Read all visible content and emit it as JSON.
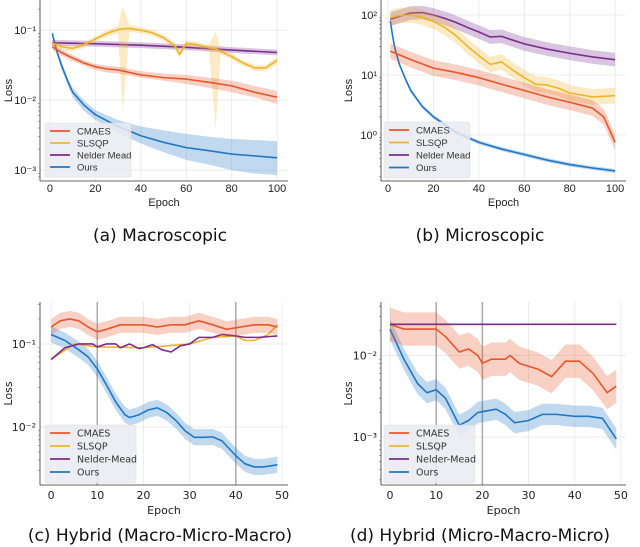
{
  "colors": {
    "CMAES": "#e8562a",
    "SLSQP": "#f0b429",
    "Nelder Mead": "#7b2d8e",
    "Nelder-Mead": "#7b2d8e",
    "Ours": "#1f77c4",
    "vline": "#aaaaaa",
    "legend_bg": "#eaeaf2"
  },
  "chart_data": [
    {
      "type": "line",
      "caption": "(a) Macroscopic",
      "xlabel": "Epoch",
      "ylabel": "Loss",
      "yscale": "log",
      "xlim": [
        -4.4,
        104.8
      ],
      "ylim": [
        0.0007,
        0.27
      ],
      "grid": true,
      "legend": "bottom-left",
      "xticks": [
        0,
        20,
        40,
        60,
        80,
        100
      ],
      "xtick_labels": [
        "0",
        "20",
        "40",
        "60",
        "80",
        "100"
      ],
      "yticks": [
        0.1,
        0.01,
        0.001
      ],
      "ytick_labels": [
        "10⁻¹",
        "10⁻²",
        "10⁻³"
      ],
      "vlines": [],
      "series": [
        {
          "name": "Ours",
          "x": [
            1,
            3,
            5,
            8,
            10,
            15,
            20,
            30,
            40,
            50,
            60,
            70,
            80,
            90,
            100
          ],
          "y": [
            0.09,
            0.05,
            0.032,
            0.018,
            0.013,
            0.0085,
            0.0062,
            0.0042,
            0.0031,
            0.0025,
            0.0021,
            0.0019,
            0.0017,
            0.0016,
            0.0015
          ],
          "lower": [
            0.08,
            0.045,
            0.028,
            0.016,
            0.011,
            0.007,
            0.0052,
            0.0034,
            0.0024,
            0.0018,
            0.0014,
            0.0012,
            0.001,
            0.0009,
            0.00085
          ],
          "upper": [
            0.1,
            0.055,
            0.036,
            0.02,
            0.015,
            0.0098,
            0.0072,
            0.0052,
            0.0042,
            0.0037,
            0.0033,
            0.003,
            0.0028,
            0.0027,
            0.0026
          ]
        },
        {
          "name": "Nelder Mead",
          "x": [
            1,
            20,
            40,
            60,
            80,
            100
          ],
          "y": [
            0.066,
            0.064,
            0.061,
            0.057,
            0.052,
            0.048
          ],
          "band_ratio": 1.1
        },
        {
          "name": "SLSQP",
          "x": [
            1,
            5,
            10,
            15,
            20,
            25,
            30,
            32,
            35,
            40,
            45,
            50,
            55,
            57,
            60,
            65,
            70,
            73,
            75,
            80,
            85,
            90,
            95,
            100
          ],
          "y": [
            0.065,
            0.058,
            0.055,
            0.062,
            0.075,
            0.09,
            0.102,
            0.105,
            0.106,
            0.1,
            0.092,
            0.078,
            0.06,
            0.045,
            0.065,
            0.062,
            0.056,
            0.054,
            0.05,
            0.042,
            0.034,
            0.029,
            0.029,
            0.037
          ],
          "lower": [
            0.06,
            0.052,
            0.05,
            0.056,
            0.068,
            0.082,
            0.09,
            0.007,
            0.095,
            0.09,
            0.083,
            0.07,
            0.054,
            0.04,
            0.058,
            0.056,
            0.05,
            0.004,
            0.045,
            0.038,
            0.031,
            0.026,
            0.026,
            0.033
          ],
          "upper": [
            0.07,
            0.064,
            0.06,
            0.068,
            0.082,
            0.099,
            0.115,
            0.22,
            0.118,
            0.11,
            0.101,
            0.086,
            0.066,
            0.05,
            0.072,
            0.068,
            0.062,
            0.095,
            0.055,
            0.046,
            0.037,
            0.032,
            0.032,
            0.041
          ]
        },
        {
          "name": "CMAES",
          "x": [
            1,
            5,
            10,
            15,
            20,
            25,
            30,
            40,
            50,
            60,
            70,
            80,
            90,
            100
          ],
          "y": [
            0.058,
            0.048,
            0.04,
            0.034,
            0.03,
            0.028,
            0.027,
            0.023,
            0.021,
            0.02,
            0.018,
            0.016,
            0.013,
            0.011
          ],
          "lower": [
            0.052,
            0.043,
            0.036,
            0.031,
            0.027,
            0.025,
            0.024,
            0.021,
            0.019,
            0.017,
            0.015,
            0.013,
            0.011,
            0.0088
          ],
          "upper": [
            0.064,
            0.053,
            0.044,
            0.037,
            0.033,
            0.031,
            0.03,
            0.026,
            0.024,
            0.023,
            0.021,
            0.019,
            0.016,
            0.0135
          ]
        }
      ],
      "legend_entries": [
        "CMAES",
        "SLSQP",
        "Nelder Mead",
        "Ours"
      ]
    },
    {
      "type": "line",
      "caption": "(b) Microscopic",
      "xlabel": "Epoch",
      "ylabel": "Loss",
      "yscale": "log",
      "xlim": [
        -3.1,
        104.8
      ],
      "ylim": [
        0.17,
        178
      ],
      "grid": true,
      "legend": "bottom-left",
      "xticks": [
        0,
        20,
        40,
        60,
        80,
        100
      ],
      "xtick_labels": [
        "0",
        "20",
        "40",
        "60",
        "80",
        "100"
      ],
      "yticks": [
        100,
        10,
        1
      ],
      "ytick_labels": [
        "10²",
        "10¹",
        "10⁰"
      ],
      "vlines": [],
      "series": [
        {
          "name": "Ours",
          "x": [
            1,
            2,
            3,
            5,
            8,
            10,
            15,
            20,
            30,
            40,
            50,
            60,
            70,
            80,
            90,
            100
          ],
          "y": [
            80,
            45,
            28,
            15,
            8,
            5.5,
            3,
            2,
            1.1,
            0.75,
            0.58,
            0.47,
            0.38,
            0.32,
            0.28,
            0.25
          ],
          "band_ratio": 1.08
        },
        {
          "name": "Nelder Mead",
          "x": [
            1,
            5,
            10,
            15,
            20,
            25,
            30,
            35,
            40,
            45,
            50,
            55,
            60,
            70,
            80,
            90,
            100
          ],
          "y": [
            85,
            95,
            108,
            110,
            100,
            88,
            75,
            62,
            52,
            43,
            44,
            38,
            33,
            27,
            23,
            20,
            18
          ],
          "band_ratio": 1.3
        },
        {
          "name": "SLSQP",
          "x": [
            1,
            5,
            10,
            15,
            20,
            25,
            30,
            35,
            40,
            45,
            50,
            55,
            60,
            65,
            70,
            75,
            80,
            90,
            100
          ],
          "y": [
            90,
            98,
            100,
            92,
            78,
            62,
            45,
            30,
            21,
            15,
            16.5,
            12,
            9,
            7,
            6.8,
            6,
            5,
            4.3,
            4.5
          ],
          "band_ratio": 1.35
        },
        {
          "name": "CMAES",
          "x": [
            1,
            10,
            20,
            30,
            40,
            50,
            60,
            70,
            80,
            90,
            95,
            100
          ],
          "y": [
            25,
            18,
            13,
            11,
            9,
            7,
            5.5,
            4.3,
            3.5,
            2.8,
            2,
            0.75
          ],
          "band_ratio": 1.35
        }
      ],
      "legend_entries": [
        "CMAES",
        "SLSQP",
        "Nelder Mead",
        "Ours"
      ]
    },
    {
      "type": "line",
      "caption": "(c) Hybrid (Macro-Micro-Macro)",
      "xlabel": "Epoch",
      "ylabel": "Loss",
      "yscale": "log",
      "xlim": [
        -2.4,
        51.3
      ],
      "ylim": [
        0.002,
        0.32
      ],
      "grid": true,
      "legend": "bottom-left",
      "xticks": [
        0,
        10,
        20,
        30,
        40,
        50
      ],
      "xtick_labels": [
        "0",
        "10",
        "20",
        "30",
        "40",
        "50"
      ],
      "yticks": [
        0.1,
        0.01
      ],
      "ytick_labels": [
        "10⁻¹",
        "10⁻²"
      ],
      "vlines": [
        10,
        40
      ],
      "series": [
        {
          "name": "Ours",
          "x": [
            0,
            3,
            6,
            8,
            10,
            12,
            14,
            16,
            17,
            19,
            21,
            23,
            25,
            27,
            29,
            31,
            33,
            35,
            37,
            40,
            42,
            44,
            46,
            49
          ],
          "y": [
            0.13,
            0.11,
            0.085,
            0.07,
            0.05,
            0.032,
            0.02,
            0.014,
            0.013,
            0.014,
            0.016,
            0.017,
            0.015,
            0.012,
            0.009,
            0.0075,
            0.0075,
            0.0076,
            0.0068,
            0.0045,
            0.0036,
            0.0033,
            0.0033,
            0.0035
          ],
          "band_ratio": 1.25
        },
        {
          "name": "SLSQP",
          "x": [
            0,
            5,
            10,
            20,
            30,
            35,
            40,
            42,
            44,
            47,
            49
          ],
          "y": [
            0.065,
            0.1,
            0.092,
            0.09,
            0.1,
            0.12,
            0.125,
            0.11,
            0.11,
            0.13,
            0.17
          ]
        },
        {
          "name": "Nelder-Mead",
          "x": [
            0,
            3,
            6,
            9,
            10,
            12,
            14,
            15,
            17,
            19,
            20,
            22,
            24,
            26,
            28,
            30,
            32,
            35,
            37,
            40,
            42,
            45,
            49
          ],
          "y": [
            0.065,
            0.09,
            0.1,
            0.1,
            0.092,
            0.1,
            0.1,
            0.09,
            0.1,
            0.088,
            0.09,
            0.098,
            0.085,
            0.08,
            0.095,
            0.1,
            0.12,
            0.12,
            0.13,
            0.125,
            0.12,
            0.12,
            0.125
          ]
        },
        {
          "name": "CMAES",
          "x": [
            0,
            2,
            4,
            6,
            8,
            10,
            12,
            15,
            18,
            20,
            23,
            26,
            29,
            32,
            35,
            38,
            41,
            44,
            47,
            49
          ],
          "y": [
            0.16,
            0.19,
            0.2,
            0.19,
            0.16,
            0.14,
            0.15,
            0.17,
            0.17,
            0.17,
            0.16,
            0.17,
            0.17,
            0.19,
            0.17,
            0.15,
            0.16,
            0.17,
            0.17,
            0.16
          ],
          "band_ratio": 1.25
        }
      ],
      "legend_entries": [
        "CMAES",
        "SLSQP",
        "Nelder-Mead",
        "Ours"
      ]
    },
    {
      "type": "line",
      "caption": "(d) Hybrid (Micro-Macro-Micro)",
      "xlabel": "Epoch",
      "ylabel": "Loss",
      "yscale": "log",
      "xlim": [
        -1.95,
        51.1
      ],
      "ylim": [
        0.00026,
        0.045
      ],
      "grid": true,
      "legend": "bottom-left",
      "xticks": [
        0,
        10,
        20,
        30,
        40,
        50
      ],
      "xtick_labels": [
        "0",
        "10",
        "20",
        "30",
        "40",
        "50"
      ],
      "yticks": [
        0.01,
        0.001
      ],
      "ytick_labels": [
        "10⁻²",
        "10⁻³"
      ],
      "vlines": [
        10,
        20
      ],
      "series": [
        {
          "name": "Ours",
          "x": [
            0,
            3,
            6,
            8,
            10,
            12,
            14,
            15,
            17,
            19,
            21,
            23,
            25,
            27,
            30,
            33,
            36,
            40,
            43,
            46,
            49
          ],
          "y": [
            0.021,
            0.009,
            0.0045,
            0.0035,
            0.0038,
            0.003,
            0.0018,
            0.0014,
            0.0016,
            0.002,
            0.0021,
            0.0022,
            0.0019,
            0.0015,
            0.0016,
            0.0019,
            0.0019,
            0.0018,
            0.0018,
            0.0017,
            0.00095
          ],
          "band_ratio": 1.35
        },
        {
          "name": "CMAES",
          "x": [
            0,
            3,
            6,
            10,
            12,
            15,
            17,
            19,
            20,
            22,
            25,
            26,
            28,
            32,
            35,
            38,
            41,
            44,
            47,
            49
          ],
          "y": [
            0.024,
            0.021,
            0.021,
            0.021,
            0.017,
            0.011,
            0.012,
            0.01,
            0.008,
            0.009,
            0.009,
            0.01,
            0.008,
            0.0068,
            0.0055,
            0.0085,
            0.0085,
            0.006,
            0.0035,
            0.0042
          ],
          "band_ratio": 1.6
        },
        {
          "name": "SLSQP",
          "x": [
            0,
            28
          ],
          "y": [
            0.024,
            0.024
          ]
        },
        {
          "name": "Nelder-Mead",
          "x": [
            0,
            49
          ],
          "y": [
            0.024,
            0.024
          ]
        }
      ],
      "legend_entries": [
        "CMAES",
        "SLSQP",
        "Nelder-Mead",
        "Ours"
      ]
    }
  ]
}
